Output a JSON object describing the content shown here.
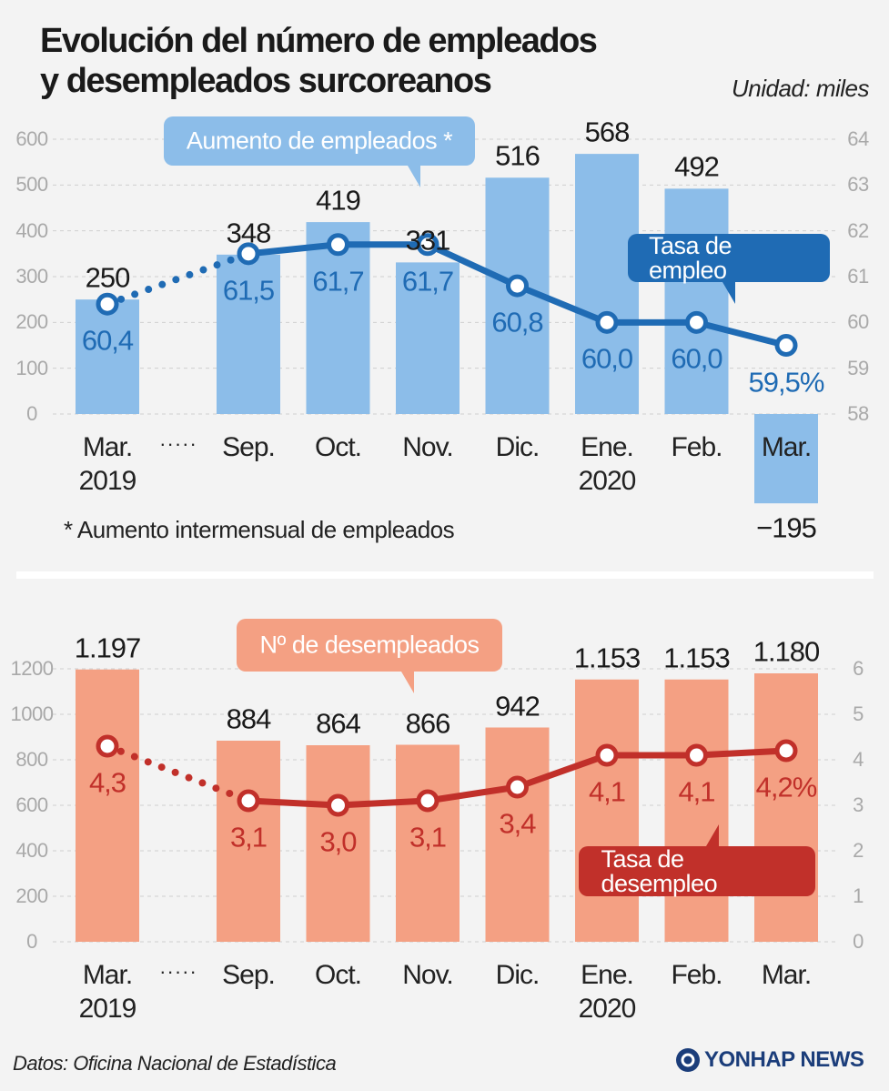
{
  "title": [
    "Evolución del número de empleados",
    "y desempleados surcoreanos"
  ],
  "unit": "Unidad: miles",
  "chart_data": [
    {
      "type": "bar",
      "categories": [
        "Mar.\n2019",
        "Sep.",
        "Oct.",
        "Nov.",
        "Dic.",
        "Ene.\n2020",
        "Feb.",
        "Mar."
      ],
      "x_break": "·····",
      "series": [
        {
          "name": "Aumento de empleados *",
          "type": "bar",
          "color": "#8cbde9",
          "values": [
            250,
            348,
            419,
            331,
            516,
            568,
            492,
            -195
          ],
          "value_labels": [
            "250",
            "348",
            "419",
            "331",
            "516",
            "568",
            "492",
            "−195"
          ]
        },
        {
          "name": "Tasa de empleo",
          "type": "line",
          "axis": "y2",
          "color": "#1f6bb4",
          "values": [
            60.4,
            61.5,
            61.7,
            61.7,
            60.8,
            60.0,
            60.0,
            59.5
          ],
          "value_labels": [
            "60,4",
            "61,5",
            "61,7",
            "61,7",
            "60,8",
            "60,0",
            "60,0",
            "59,5%"
          ]
        }
      ],
      "ylim": [
        0,
        600
      ],
      "yticks": [
        0,
        100,
        200,
        300,
        400,
        500,
        600
      ],
      "y2lim": [
        58,
        64
      ],
      "y2ticks": [
        58,
        59,
        60,
        61,
        62,
        63,
        64
      ],
      "grid": true,
      "note": "* Aumento intermensual de empleados"
    },
    {
      "type": "bar",
      "categories": [
        "Mar.\n2019",
        "Sep.",
        "Oct.",
        "Nov.",
        "Dic.",
        "Ene.\n2020",
        "Feb.",
        "Mar."
      ],
      "x_break": "·····",
      "series": [
        {
          "name": "Nº de desempleados",
          "type": "bar",
          "color": "#f4a083",
          "values": [
            1197,
            884,
            864,
            866,
            942,
            1153,
            1153,
            1180
          ],
          "value_labels": [
            "1.197",
            "884",
            "864",
            "866",
            "942",
            "1.153",
            "1.153",
            "1.180"
          ]
        },
        {
          "name": "Tasa de desempleo",
          "type": "line",
          "axis": "y2",
          "color": "#c1302a",
          "values": [
            4.3,
            3.1,
            3.0,
            3.1,
            3.4,
            4.1,
            4.1,
            4.2
          ],
          "value_labels": [
            "4,3",
            "3,1",
            "3,0",
            "3,1",
            "3,4",
            "4,1",
            "4,1",
            "4,2%"
          ]
        }
      ],
      "ylim": [
        0,
        1200
      ],
      "yticks": [
        0,
        200,
        400,
        600,
        800,
        1000,
        1200
      ],
      "y2lim": [
        0,
        6
      ],
      "y2ticks": [
        0,
        1,
        2,
        3,
        4,
        5,
        6
      ],
      "grid": true
    }
  ],
  "source": "Datos: Oficina Nacional de Estadística",
  "logo": "YONHAP NEWS"
}
